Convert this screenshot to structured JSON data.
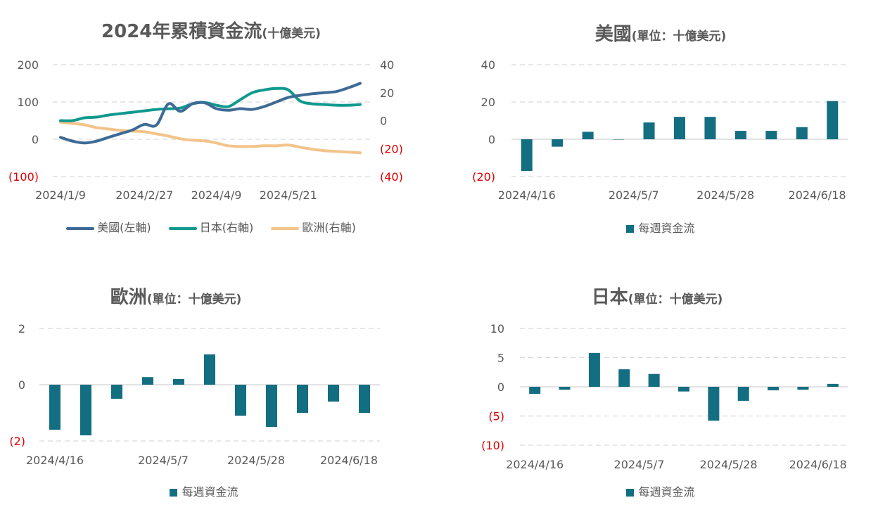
{
  "colors": {
    "us": "#3E6A96",
    "japan": "#10998E",
    "europe": "#F2C48A",
    "bar": "#136E82",
    "negative": "#E00000",
    "axis_text": "#595959",
    "grid": "#D9D9D9"
  },
  "chart_data": [
    {
      "id": "cumulative",
      "type": "line",
      "title": "2024年累積資金流",
      "subtitle": "(十億美元)",
      "x_labels": [
        "2024/1/9",
        "2024/2/27",
        "2024/4/9",
        "2024/5/21"
      ],
      "x_label_index": [
        0,
        7,
        13,
        19
      ],
      "n_points": 26,
      "ylim_left": [
        -100,
        200
      ],
      "yticks_left": [
        "(100)",
        "0",
        "100",
        "200"
      ],
      "ylim_right": [
        -40,
        40
      ],
      "yticks_right": [
        "(40)",
        "(20)",
        "0",
        "20",
        "40"
      ],
      "grid": true,
      "legend_position": "bottom",
      "series": [
        {
          "name": "美國(左軸)",
          "axis": "left",
          "color_key": "us",
          "values": [
            5,
            -5,
            -10,
            -5,
            5,
            15,
            25,
            40,
            38,
            95,
            75,
            95,
            98,
            82,
            78,
            82,
            80,
            88,
            100,
            112,
            118,
            122,
            125,
            128,
            138,
            150
          ]
        },
        {
          "name": "日本(右軸)",
          "axis": "right",
          "color_key": "japan",
          "values": [
            0,
            0,
            2,
            2.5,
            4,
            5,
            6,
            7,
            8,
            8.5,
            9,
            12,
            13,
            11,
            10,
            15,
            20,
            22,
            23,
            22,
            14,
            12,
            11.5,
            11,
            11,
            11.5
          ]
        },
        {
          "name": "歐洲(右軸)",
          "axis": "right",
          "color_key": "europe",
          "values": [
            -1,
            -2,
            -3,
            -5,
            -6,
            -7,
            -7.5,
            -8,
            -9.5,
            -11,
            -13,
            -14,
            -14.5,
            -16,
            -18,
            -18.5,
            -18.5,
            -18,
            -18,
            -17.5,
            -19,
            -20.5,
            -21.5,
            -22,
            -22.5,
            -23
          ]
        }
      ]
    },
    {
      "id": "us",
      "type": "bar",
      "title": "美國",
      "subtitle": "(單位：十億美元)",
      "n_bars": 11,
      "values": [
        -17,
        -4,
        4,
        0,
        9,
        12,
        12,
        4.5,
        4.5,
        6.5,
        20.5
      ],
      "x_labels": [
        "2024/4/16",
        "2024/5/7",
        "2024/5/28",
        "2024/6/18"
      ],
      "x_label_index": [
        0,
        3.5,
        6.5,
        9.5
      ],
      "ylim": [
        -20,
        40
      ],
      "yticks": [
        "(20)",
        "0",
        "20",
        "40"
      ],
      "grid": true,
      "legend": "每週資金流",
      "legend_position": "bottom"
    },
    {
      "id": "europe",
      "type": "bar",
      "title": "歐洲",
      "subtitle": "(單位：十億美元)",
      "n_bars": 11,
      "values": [
        -1.6,
        -1.8,
        -0.5,
        0.27,
        0.2,
        1.08,
        -1.1,
        -1.5,
        -1.0,
        -0.6,
        -1.0
      ],
      "x_labels": [
        "2024/4/16",
        "2024/5/7",
        "2024/5/28",
        "2024/6/18"
      ],
      "x_label_index": [
        0,
        3.5,
        6.5,
        9.5
      ],
      "ylim": [
        -2,
        2
      ],
      "yticks": [
        "(2)",
        "0",
        "2"
      ],
      "grid": true,
      "legend": "每週資金流",
      "legend_position": "bottom"
    },
    {
      "id": "japan",
      "type": "bar",
      "title": "日本",
      "subtitle": "(單位：十億美元)",
      "n_bars": 11,
      "values": [
        -1.2,
        -0.5,
        5.8,
        3.0,
        2.2,
        -0.8,
        -5.8,
        -2.4,
        -0.6,
        -0.5,
        0.5
      ],
      "x_labels": [
        "2024/4/16",
        "2024/5/7",
        "2024/5/28",
        "2024/6/18"
      ],
      "x_label_index": [
        0,
        3.5,
        6.5,
        9.5
      ],
      "ylim": [
        -10,
        10
      ],
      "yticks": [
        "(10)",
        "(5)",
        "0",
        "5",
        "10"
      ],
      "grid": true,
      "legend": "每週資金流",
      "legend_position": "bottom"
    }
  ]
}
